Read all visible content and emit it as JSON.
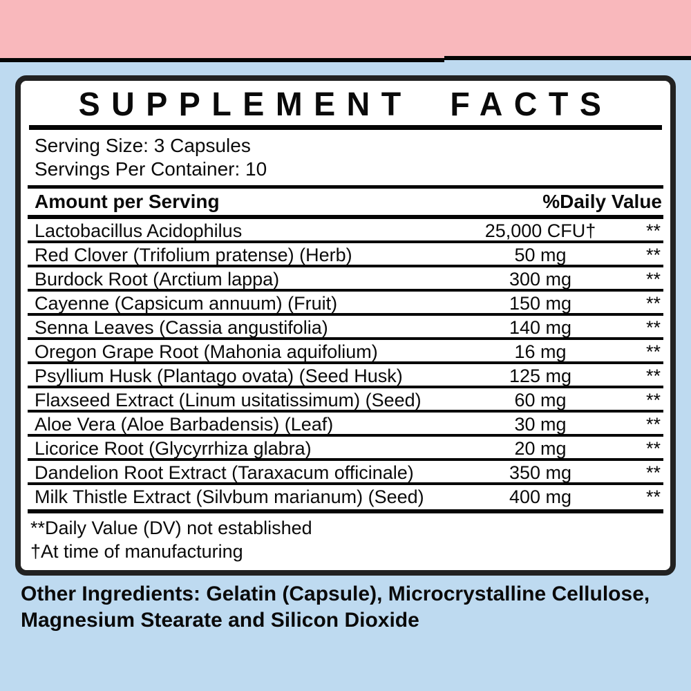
{
  "page": {
    "band_color": "#f9b8bc",
    "background_color": "#bedaf0",
    "panel_background": "#ffffff",
    "text_color": "#0a0a0a"
  },
  "panel": {
    "title": "SUPPLEMENT FACTS",
    "serving_size": "Serving Size: 3 Capsules",
    "servings_per_container": "Servings Per Container: 10",
    "table": {
      "amount_header": "Amount per Serving",
      "dv_header": "%Daily Value",
      "rows": [
        {
          "name": "Lactobacillus Acidophilus",
          "amount": "25,000 CFU†",
          "dv": "**"
        },
        {
          "name": "Red Clover (Trifolium pratense) (Herb)",
          "amount": "50 mg",
          "dv": "**"
        },
        {
          "name": "Burdock Root (Arctium lappa)",
          "amount": "300 mg",
          "dv": "**"
        },
        {
          "name": "Cayenne (Capsicum annuum) (Fruit)",
          "amount": "150 mg",
          "dv": "**"
        },
        {
          "name": "Senna Leaves (Cassia angustifolia)",
          "amount": "140 mg",
          "dv": "**"
        },
        {
          "name": "Oregon Grape Root (Mahonia aquifolium)",
          "amount": "16 mg",
          "dv": "**"
        },
        {
          "name": "Psyllium Husk (Plantago ovata) (Seed Husk)",
          "amount": "125 mg",
          "dv": "**"
        },
        {
          "name": "Flaxseed Extract (Linum usitatissimum) (Seed)",
          "amount": "60 mg",
          "dv": "**"
        },
        {
          "name": "Aloe Vera (Aloe Barbadensis) (Leaf)",
          "amount": "30 mg",
          "dv": "**"
        },
        {
          "name": "Licorice Root (Glycyrrhiza glabra)",
          "amount": "20 mg",
          "dv": "**"
        },
        {
          "name": "Dandelion Root Extract (Taraxacum officinale)",
          "amount": "350 mg",
          "dv": "**"
        },
        {
          "name": "Milk Thistle Extract (Silvbum marianum) (Seed)",
          "amount": "400 mg",
          "dv": "**"
        }
      ]
    },
    "footnotes": [
      "**Daily Value (DV) not established",
      "†At time of manufacturing"
    ]
  },
  "other_ingredients": "Other Ingredients: Gelatin (Capsule), Microcrystalline Cellulose, Magnesium Stearate and Silicon Dioxide"
}
